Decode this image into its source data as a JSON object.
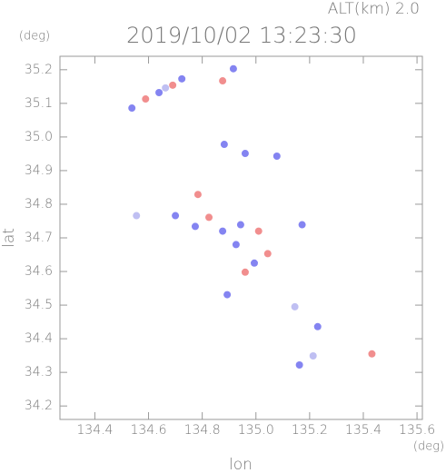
{
  "chart_data": {
    "type": "scatter",
    "title": "2019/10/02 13:23:30",
    "subtitle": "ALT(km) 2.0",
    "y_unit": "(deg)",
    "x_unit": "(deg)",
    "xlabel": "lon",
    "ylabel": "lat",
    "xlim": [
      134.27,
      135.62
    ],
    "ylim": [
      34.16,
      35.24
    ],
    "xticks": [
      134.4,
      134.6,
      134.8,
      {
        "value": 135.0,
        "label": "135.0"
      },
      135.2,
      135.4,
      135.6
    ],
    "yticks": [
      34.2,
      34.3,
      34.4,
      34.5,
      34.6,
      34.7,
      34.8,
      34.9,
      {
        "value": 35.0,
        "label": "35.0"
      },
      35.1,
      35.2
    ],
    "series": [
      {
        "color": "#6f6fee",
        "x": [
          134.538,
          134.639,
          134.724,
          134.916,
          134.882,
          134.96,
          135.078,
          134.7,
          134.774,
          134.876,
          134.943,
          134.926,
          134.994,
          134.893,
          135.23,
          135.162,
          135.172
        ],
        "values": [
          35.086,
          35.132,
          35.173,
          35.203,
          34.978,
          34.951,
          34.943,
          34.766,
          34.734,
          34.72,
          34.739,
          34.68,
          34.625,
          34.531,
          34.436,
          34.322,
          34.739
        ]
      },
      {
        "color": "#ee7a7a",
        "x": [
          134.589,
          134.69,
          134.784,
          134.825,
          135.01,
          135.044,
          134.96,
          135.432,
          134.876
        ],
        "values": [
          35.113,
          35.154,
          34.829,
          34.761,
          34.72,
          34.653,
          34.598,
          34.355,
          35.167
        ]
      },
      {
        "color": "#b4b4f0",
        "x": [
          134.555,
          134.663,
          135.145,
          135.213
        ],
        "values": [
          34.766,
          35.146,
          34.495,
          34.349
        ]
      }
    ]
  }
}
